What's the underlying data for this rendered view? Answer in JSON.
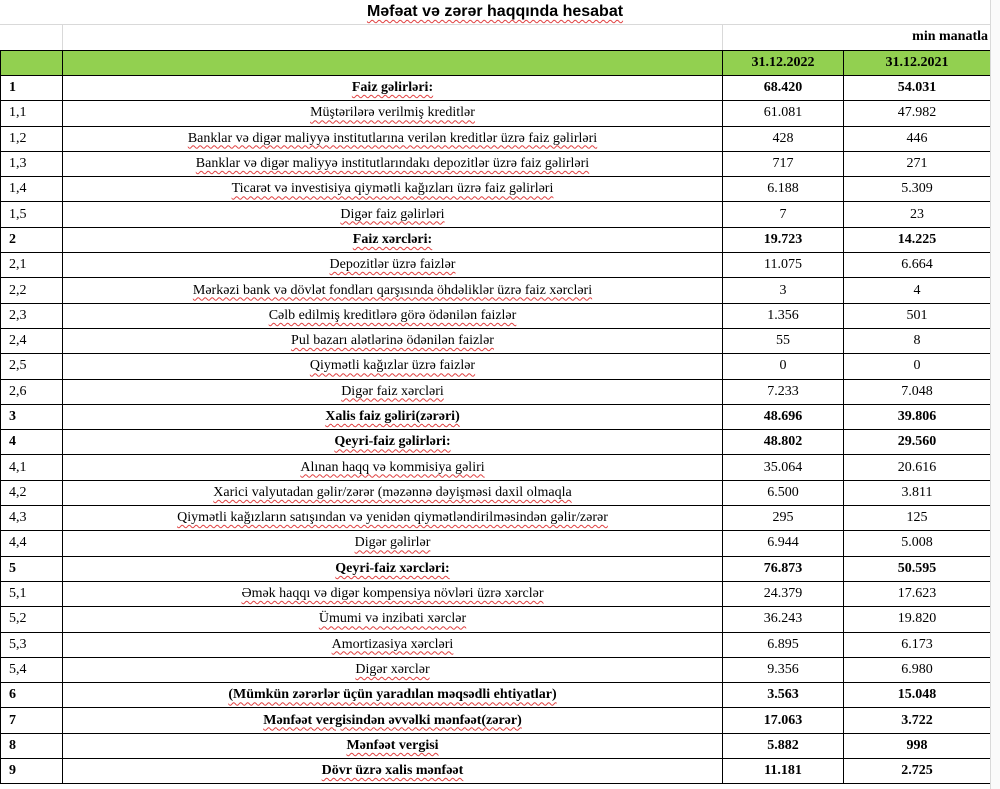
{
  "title": "Məfəat və zərər haqqında hesabat",
  "unit": "min manatla",
  "columns": [
    "",
    "",
    "31.12.2022",
    "31.12.2021"
  ],
  "colors": {
    "header_bg": "#92d050"
  },
  "rows": [
    {
      "no": "1",
      "label": "Faiz gəlirləri:",
      "v2022": "68.420",
      "v2021": "54.031",
      "bold": true
    },
    {
      "no": "1,1",
      "label": "Müştərilərə verilmiş kreditlər",
      "v2022": "61.081",
      "v2021": "47.982"
    },
    {
      "no": "1,2",
      "label": "Banklar və digər maliyyə institutlarına verilən kreditlər üzrə faiz gəlirləri",
      "v2022": "428",
      "v2021": "446"
    },
    {
      "no": "1,3",
      "label": "Banklar və digər maliyyə institutlarındakı depozitlər üzrə faiz gəlirləri",
      "v2022": "717",
      "v2021": "271"
    },
    {
      "no": "1,4",
      "label": "Ticarət və investisiya qiymətli kağızları üzrə faiz gəlirləri",
      "v2022": "6.188",
      "v2021": "5.309"
    },
    {
      "no": "1,5",
      "label": "Digər faiz gəlirləri",
      "v2022": "7",
      "v2021": "23"
    },
    {
      "no": "2",
      "label": "Faiz xərcləri:",
      "v2022": "19.723",
      "v2021": "14.225",
      "bold": true
    },
    {
      "no": "2,1",
      "label": "Depozitlər üzrə faizlər",
      "v2022": "11.075",
      "v2021": "6.664"
    },
    {
      "no": "2,2",
      "label": "Mərkəzi bank və dövlət fondları qarşısında öhdəliklər üzrə faiz xərcləri",
      "v2022": "3",
      "v2021": "4"
    },
    {
      "no": "2,3",
      "label": "Cəlb edilmiş kreditlərə görə ödənilən faizlər",
      "v2022": "1.356",
      "v2021": "501"
    },
    {
      "no": "2,4",
      "label": "Pul bazarı alətlərinə ödənilən faizlər",
      "v2022": "55",
      "v2021": "8"
    },
    {
      "no": "2,5",
      "label": "Qiymətli kağızlar üzrə faizlər",
      "v2022": "0",
      "v2021": "0"
    },
    {
      "no": "2,6",
      "label": "Digər faiz xərcləri",
      "v2022": "7.233",
      "v2021": "7.048"
    },
    {
      "no": "3",
      "label": "Xalis faiz gəliri(zərəri)",
      "v2022": "48.696",
      "v2021": "39.806",
      "bold": true
    },
    {
      "no": "4",
      "label": "Qeyri-faiz gəlirləri:",
      "v2022": "48.802",
      "v2021": "29.560",
      "bold": true
    },
    {
      "no": "4,1",
      "label": "Alınan haqq və kommisiya gəliri",
      "v2022": "35.064",
      "v2021": "20.616"
    },
    {
      "no": "4,2",
      "label": "Xarici valyutadan gəlir/zərər (məzənnə dəyişməsi daxil olmaqla",
      "v2022": "6.500",
      "v2021": "3.811"
    },
    {
      "no": "4,3",
      "label": "Qiymətli kağızların satışından və yenidən qiymətləndirilməsindən gəlir/zərər",
      "v2022": "295",
      "v2021": "125"
    },
    {
      "no": "4,4",
      "label": "Digər gəlirlər",
      "v2022": "6.944",
      "v2021": "5.008"
    },
    {
      "no": "5",
      "label": "Qeyri-faiz xərcləri:",
      "v2022": "76.873",
      "v2021": "50.595",
      "bold": true
    },
    {
      "no": "5,1",
      "label": "Əmək haqqı və digər kompensiya növləri üzrə xərclər",
      "v2022": "24.379",
      "v2021": "17.623"
    },
    {
      "no": "5,2",
      "label": "Ümumi və inzibati xərclər",
      "v2022": "36.243",
      "v2021": "19.820"
    },
    {
      "no": "5,3",
      "label": "Amortizasiya xərcləri",
      "v2022": "6.895",
      "v2021": "6.173"
    },
    {
      "no": "5,4",
      "label": "Digər xərclər",
      "v2022": "9.356",
      "v2021": "6.980"
    },
    {
      "no": "6",
      "label": "(Mümkün zərərlər üçün yaradılan məqsədli ehtiyatlar)",
      "v2022": "3.563",
      "v2021": "15.048",
      "bold": true
    },
    {
      "no": "7",
      "label": "Mənfəət vergisindən əvvəlki mənfəət(zərər)",
      "v2022": "17.063",
      "v2021": "3.722",
      "bold": true
    },
    {
      "no": "8",
      "label": "Mənfəət vergisi",
      "v2022": "5.882",
      "v2021": "998",
      "bold": true
    },
    {
      "no": "9",
      "label": "Dövr üzrə xalis mənfəət",
      "v2022": "11.181",
      "v2021": "2.725",
      "bold": true
    }
  ]
}
